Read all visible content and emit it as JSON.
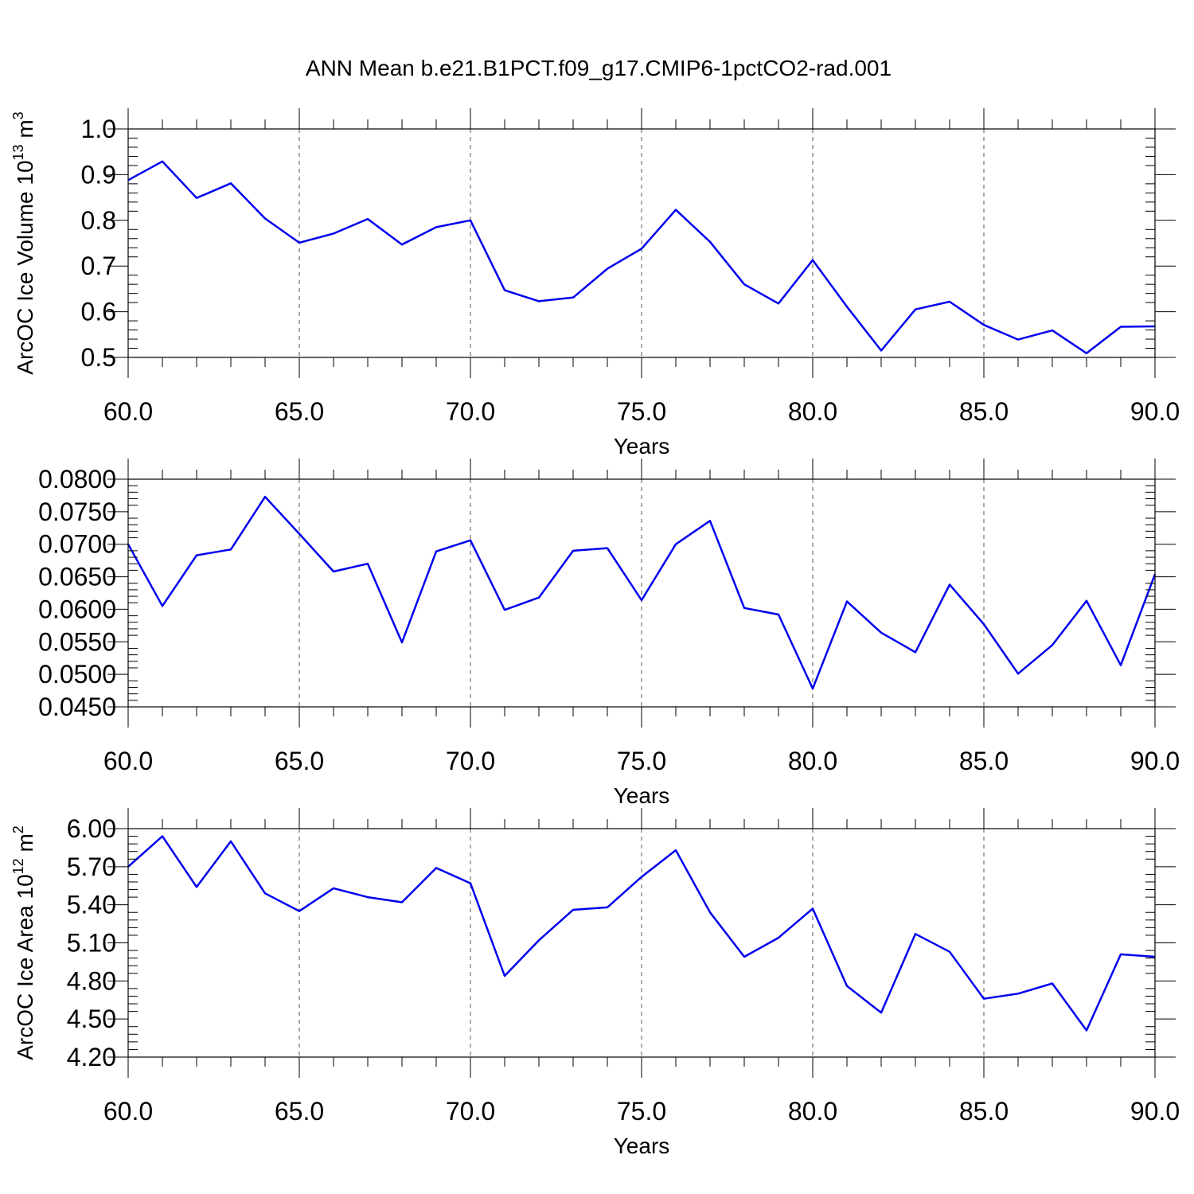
{
  "figure": {
    "title": "ANN Mean b.e21.B1PCT.f09_g17.CMIP6-1pctCO2-rad.001"
  },
  "chart_data": [
    {
      "type": "line",
      "title": "",
      "xlabel": "Years",
      "ylabel": "ArcOC Ice Volume 10",
      "ylabel_sup": "13",
      "ylabel_unit": " m",
      "ylabel_unit_sup": "3",
      "xlim": [
        60,
        90
      ],
      "ylim": [
        0.5,
        1.0
      ],
      "x_ticks": [
        60,
        65,
        70,
        75,
        80,
        85,
        90
      ],
      "x_tick_labels": [
        "60.0",
        "65.0",
        "70.0",
        "75.0",
        "80.0",
        "85.0",
        "90.0"
      ],
      "y_ticks": [
        0.5,
        0.6,
        0.7,
        0.8,
        0.9,
        1.0
      ],
      "y_tick_labels": [
        "0.5",
        "0.6",
        "0.7",
        "0.8",
        "0.9",
        "1.0"
      ],
      "grid": "vertical dashed at major x ticks",
      "color": "#0000ee",
      "x": [
        60,
        61,
        62,
        63,
        64,
        65,
        66,
        67,
        68,
        69,
        70,
        71,
        72,
        73,
        74,
        75,
        76,
        77,
        78,
        79,
        80,
        81,
        82,
        83,
        84,
        85,
        86,
        87,
        88,
        89,
        90
      ],
      "values": [
        0.888,
        0.929,
        0.849,
        0.881,
        0.804,
        0.751,
        0.771,
        0.803,
        0.747,
        0.785,
        0.8,
        0.647,
        0.623,
        0.631,
        0.694,
        0.738,
        0.823,
        0.753,
        0.66,
        0.618,
        0.713,
        0.611,
        0.515,
        0.605,
        0.622,
        0.571,
        0.539,
        0.559,
        0.509,
        0.567,
        0.568
      ]
    },
    {
      "type": "line",
      "title": "",
      "xlabel": "Years",
      "ylabel": "",
      "xlim": [
        60,
        90
      ],
      "ylim": [
        0.045,
        0.08
      ],
      "x_ticks": [
        60,
        65,
        70,
        75,
        80,
        85,
        90
      ],
      "x_tick_labels": [
        "60.0",
        "65.0",
        "70.0",
        "75.0",
        "80.0",
        "85.0",
        "90.0"
      ],
      "y_ticks": [
        0.045,
        0.05,
        0.055,
        0.06,
        0.065,
        0.07,
        0.075,
        0.08
      ],
      "y_tick_labels": [
        "0.0450",
        "0.0500",
        "0.0550",
        "0.0600",
        "0.0650",
        "0.0700",
        "0.0750",
        "0.0800"
      ],
      "grid": "vertical dashed at major x ticks",
      "color": "#0000ee",
      "x": [
        60,
        61,
        62,
        63,
        64,
        65,
        66,
        67,
        68,
        69,
        70,
        71,
        72,
        73,
        74,
        75,
        76,
        77,
        78,
        79,
        80,
        81,
        82,
        83,
        84,
        85,
        86,
        87,
        88,
        89,
        90
      ],
      "values": [
        0.07,
        0.0605,
        0.0683,
        0.0692,
        0.0773,
        0.0716,
        0.0658,
        0.067,
        0.0549,
        0.0689,
        0.0706,
        0.0599,
        0.0618,
        0.069,
        0.0694,
        0.0614,
        0.07,
        0.0736,
        0.0602,
        0.0592,
        0.0478,
        0.0612,
        0.0564,
        0.0534,
        0.0638,
        0.0577,
        0.0501,
        0.0545,
        0.0613,
        0.0514,
        0.0654
      ]
    },
    {
      "type": "line",
      "title": "",
      "xlabel": "Years",
      "ylabel": "ArcOC Ice Area 10",
      "ylabel_sup": "12",
      "ylabel_unit": " m",
      "ylabel_unit_sup": "2",
      "xlim": [
        60,
        90
      ],
      "ylim": [
        4.2,
        6.0
      ],
      "x_ticks": [
        60,
        65,
        70,
        75,
        80,
        85,
        90
      ],
      "x_tick_labels": [
        "60.0",
        "65.0",
        "70.0",
        "75.0",
        "80.0",
        "85.0",
        "90.0"
      ],
      "y_ticks": [
        4.2,
        4.5,
        4.8,
        5.1,
        5.4,
        5.7,
        6.0
      ],
      "y_tick_labels": [
        "4.20",
        "4.50",
        "4.80",
        "5.10",
        "5.40",
        "5.70",
        "6.00"
      ],
      "grid": "vertical dashed at major x ticks",
      "color": "#0000ee",
      "x": [
        60,
        61,
        62,
        63,
        64,
        65,
        66,
        67,
        68,
        69,
        70,
        71,
        72,
        73,
        74,
        75,
        76,
        77,
        78,
        79,
        80,
        81,
        82,
        83,
        84,
        85,
        86,
        87,
        88,
        89,
        90
      ],
      "values": [
        5.7,
        5.94,
        5.54,
        5.9,
        5.49,
        5.35,
        5.53,
        5.46,
        5.42,
        5.69,
        5.57,
        4.84,
        5.12,
        5.36,
        5.38,
        5.62,
        5.83,
        5.34,
        4.99,
        5.14,
        5.37,
        4.76,
        4.55,
        5.17,
        5.03,
        4.66,
        4.7,
        4.78,
        4.41,
        5.01,
        4.99
      ]
    }
  ]
}
